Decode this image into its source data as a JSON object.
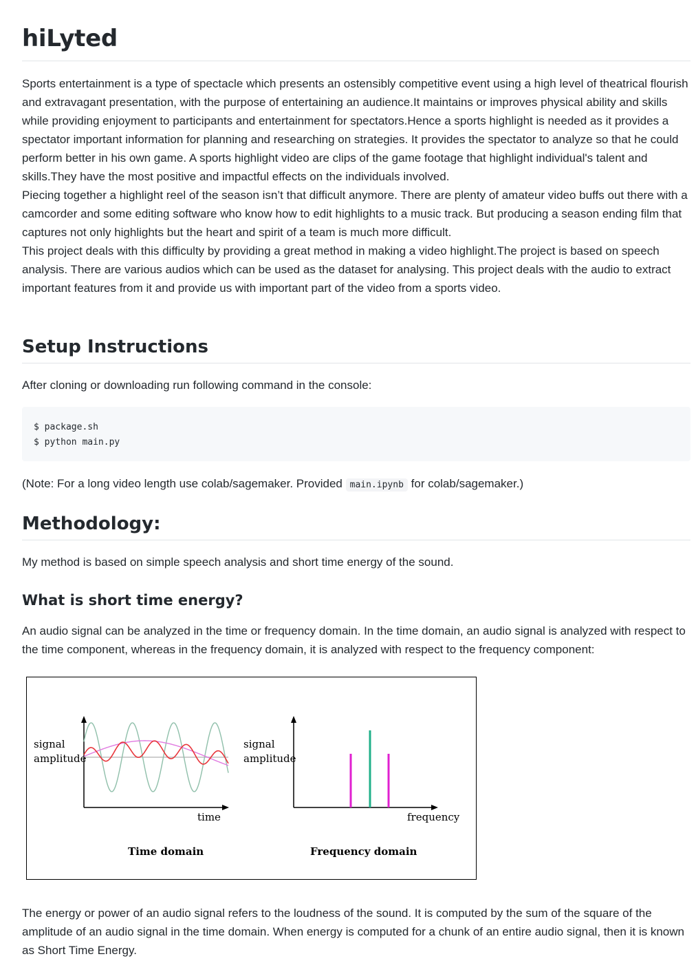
{
  "title": "hiLyted",
  "intro_paragraphs": [
    "Sports entertainment is a type of spectacle which presents an ostensibly competitive event using a high level of theatrical flourish and extravagant presentation, with the purpose of entertaining an audience.It maintains or improves physical ability and skills while providing enjoyment to participants and entertainment for spectators.Hence a sports highlight is needed as it provides a spectator important information for planning and researching on strategies. It provides the spectator to analyze so that he could perform better in his own game. A sports highlight video are clips of the game footage that highlight individual's talent and skills.They have the most positive and impactful effects on the individuals involved.",
    "Piecing together a highlight reel of the season isn’t that difficult anymore. There are plenty of amateur video buffs out there with a camcorder and some editing software who know how to edit highlights to a music track. But producing a season ending film that captures not only highlights but the heart and spirit of a team is much more difficult.",
    "This project deals with this difficulty by providing a great method in making a video highlight.The project is based on speech analysis. There are various audios which can be used as the dataset for analysing. This project deals with the audio to extract important features from it and provide us with important part of the video from a sports video."
  ],
  "setup": {
    "heading": "Setup Instructions",
    "instruction": "After cloning or downloading run following command in the console:",
    "code_lines": [
      "$ package.sh",
      "$ python main.py"
    ],
    "note_before": "(Note: For a long video length use colab/sagemaker. Provided",
    "note_code": "main.ipynb",
    "note_after": "for colab/sagemaker.)"
  },
  "methodology": {
    "heading": "Methodology:",
    "text": "My method is based on simple speech analysis and short time energy of the sound.",
    "subheading": "What is short time energy?",
    "paragraph": "An audio signal can be analyzed in the time or frequency domain. In the time domain, an audio signal is analyzed with respect to the time component, whereas in the frequency domain, it is analyzed with respect to the frequency component:",
    "closing": "The energy or power of an audio signal refers to the loudness of the sound. It is computed by the sum of the square of the amplitude of an audio signal in the time domain. When energy is computed for a chunk of an entire audio signal, then it is known as Short Time Energy."
  },
  "figure": {
    "left_ylabel_1": "signal",
    "left_ylabel_2": "amplitude",
    "left_xlabel": "time",
    "left_caption": "Time domain",
    "right_ylabel_1": "signal",
    "right_ylabel_2": "amplitude",
    "right_xlabel": "frequency",
    "right_caption": "Frequency domain",
    "colors": {
      "sine_green": "#8fbfaa",
      "sine_red": "#e8353b",
      "sine_pink": "#e07ae0",
      "baseline": "#bdbdbd",
      "bar_magenta": "#e020d0",
      "bar_green": "#20b08a"
    }
  }
}
